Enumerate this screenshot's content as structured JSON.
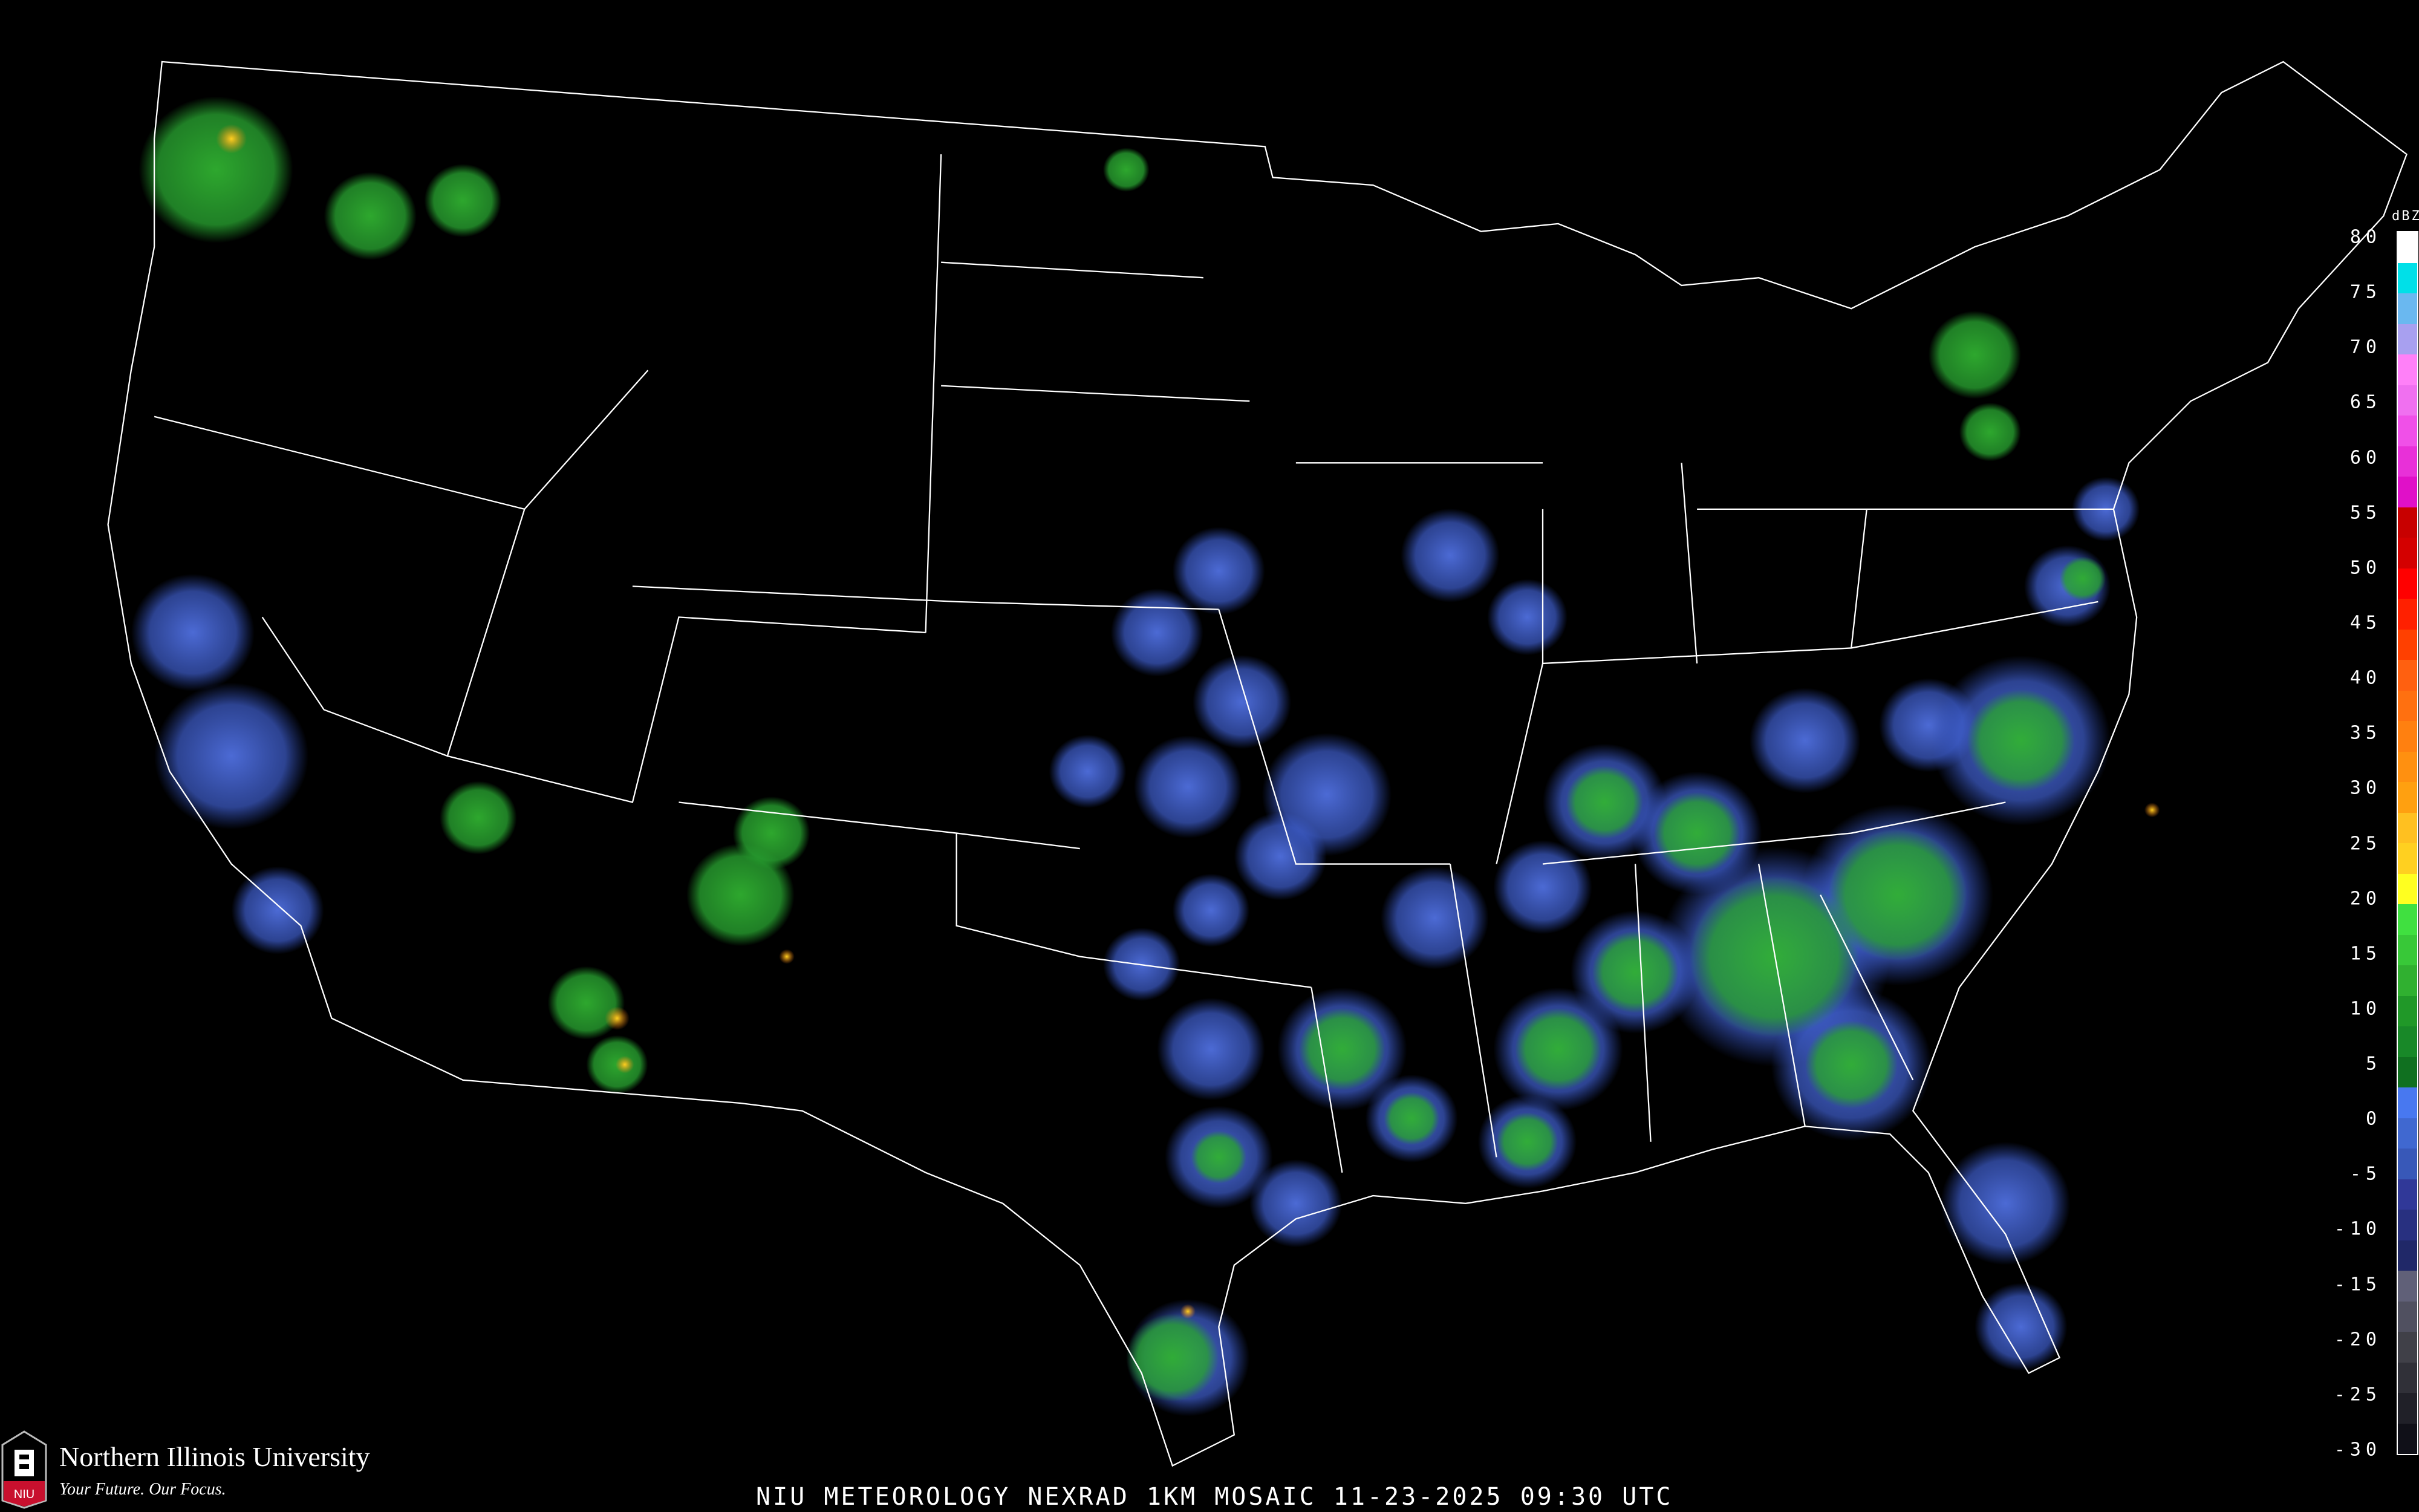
{
  "title": "NIU METEOROLOGY NEXRAD 1KM MOSAIC  11-23-2025 09:30 UTC",
  "logo": {
    "name": "Northern Illinois University",
    "tagline": "Your Future. Our Focus.",
    "mark": "NIU"
  },
  "legend": {
    "unit": "dBZ",
    "ticks": [
      "80",
      "75",
      "70",
      "65",
      "60",
      "55",
      "50",
      "45",
      "40",
      "35",
      "30",
      "25",
      "20",
      "15",
      "10",
      "5",
      "0",
      "-5",
      "-10",
      "-15",
      "-20",
      "-25",
      "-30"
    ],
    "colors": [
      "#ffffff",
      "#00e0e8",
      "#6ab8f0",
      "#a8a0f0",
      "#ff80f8",
      "#f070f0",
      "#f050e8",
      "#e830d8",
      "#e010c8",
      "#c80000",
      "#d40000",
      "#ff0000",
      "#ff2000",
      "#ff4000",
      "#ff6010",
      "#ff7010",
      "#ff8010",
      "#ff9010",
      "#ffa010",
      "#ffc020",
      "#ffd020",
      "#ffff20",
      "#40e040",
      "#38c838",
      "#30b030",
      "#209828",
      "#188828",
      "#107020",
      "#4878f0",
      "#4068d0",
      "#3858b8",
      "#303898",
      "#283080",
      "#202868",
      "#606078",
      "#505060",
      "#404048",
      "#303038",
      "#202028",
      "#101018"
    ]
  },
  "colors": {
    "background": "#000000",
    "borders": "#ffffff",
    "counties": "#555555",
    "roads": "#8a4a20",
    "light_echo": "#4a6ce0",
    "moderate_echo": "#2aa82a",
    "heavy_echo": "#ffd020"
  }
}
